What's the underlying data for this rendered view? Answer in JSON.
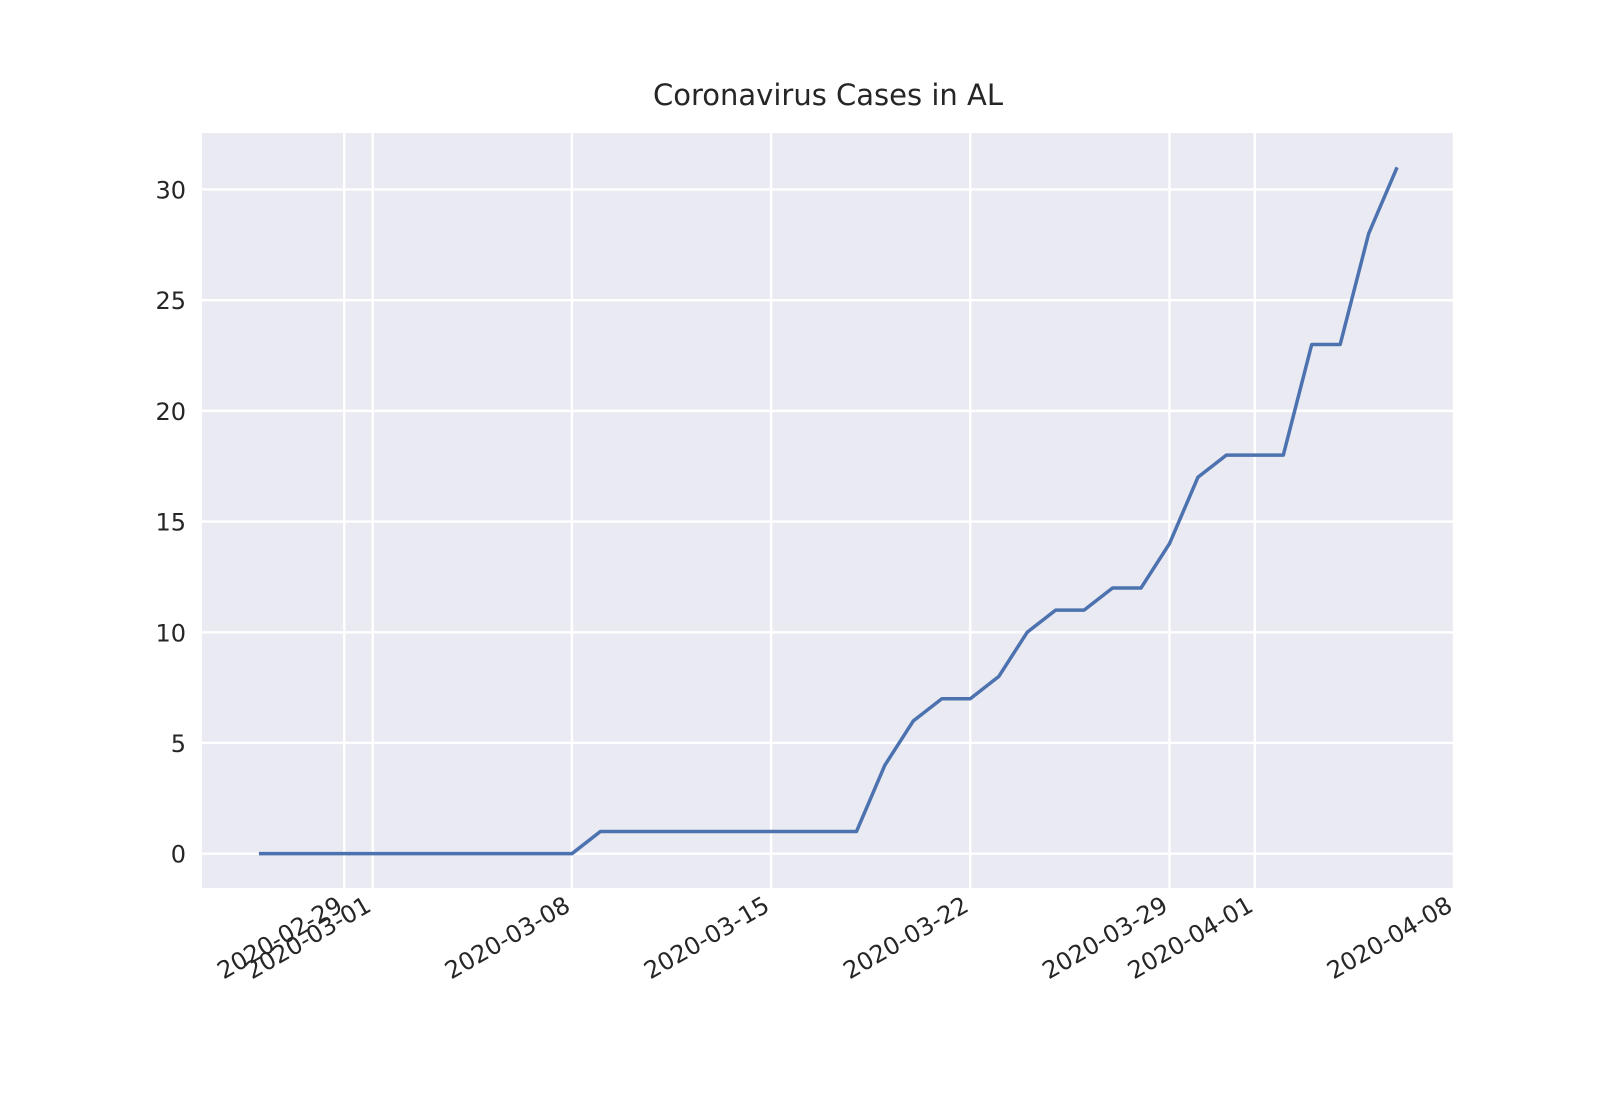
{
  "chart_data": {
    "type": "line",
    "title": "Coronavirus Cases in AL",
    "x": [
      "2020-02-26",
      "2020-02-27",
      "2020-02-28",
      "2020-02-29",
      "2020-03-01",
      "2020-03-02",
      "2020-03-03",
      "2020-03-04",
      "2020-03-05",
      "2020-03-06",
      "2020-03-07",
      "2020-03-08",
      "2020-03-09",
      "2020-03-10",
      "2020-03-11",
      "2020-03-12",
      "2020-03-13",
      "2020-03-14",
      "2020-03-15",
      "2020-03-16",
      "2020-03-17",
      "2020-03-18",
      "2020-03-19",
      "2020-03-20",
      "2020-03-21",
      "2020-03-22",
      "2020-03-23",
      "2020-03-24",
      "2020-03-25",
      "2020-03-26",
      "2020-03-27",
      "2020-03-28",
      "2020-03-29",
      "2020-03-30",
      "2020-03-31",
      "2020-04-01",
      "2020-04-02",
      "2020-04-03",
      "2020-04-04",
      "2020-04-05",
      "2020-04-06"
    ],
    "series": [
      {
        "color": "#4c72b0",
        "values": [
          0,
          0,
          0,
          0,
          0,
          0,
          0,
          0,
          0,
          0,
          0,
          0,
          1,
          1,
          1,
          1,
          1,
          1,
          1,
          1,
          1,
          1,
          4,
          6,
          7,
          7,
          8,
          10,
          11,
          11,
          12,
          12,
          14,
          17,
          18,
          18,
          18,
          23,
          23,
          28,
          31
        ]
      }
    ],
    "xlim": [
      "2020-02-24",
      "2020-04-08"
    ],
    "xticks": [
      "2020-02-29",
      "2020-03-01",
      "2020-03-08",
      "2020-03-15",
      "2020-03-22",
      "2020-03-29",
      "2020-04-01",
      "2020-04-08"
    ],
    "ylim": [
      -1.55,
      32.55
    ],
    "yticks": [
      0,
      5,
      10,
      15,
      20,
      25,
      30
    ],
    "grid": true,
    "background": "#eaeaf2"
  }
}
